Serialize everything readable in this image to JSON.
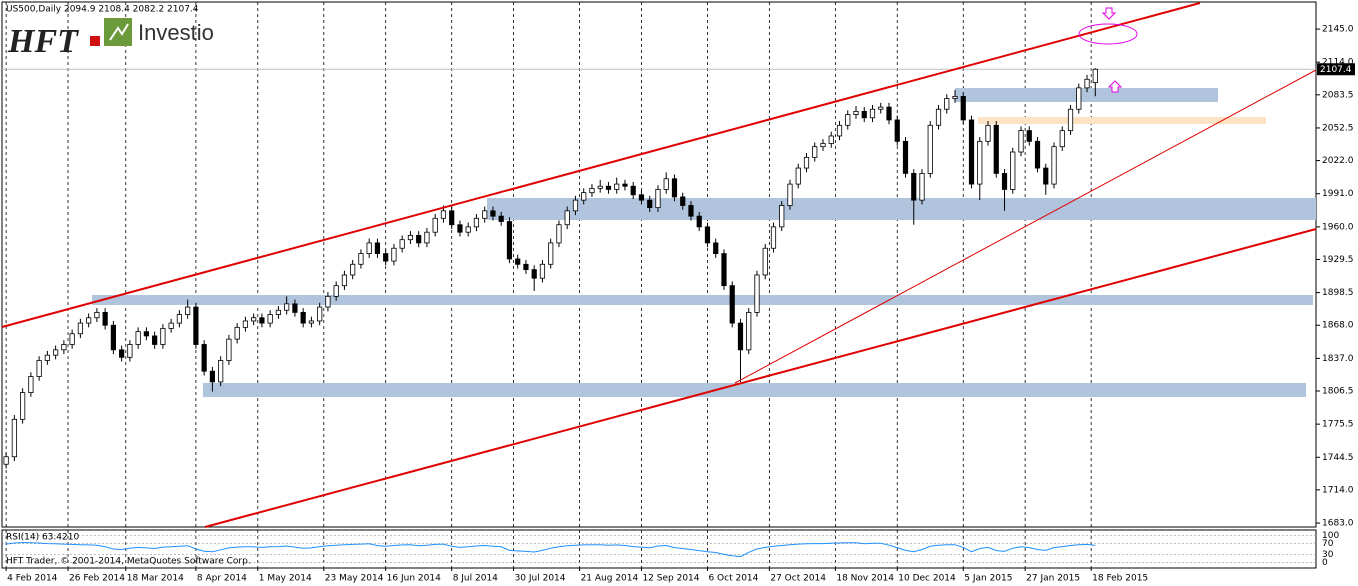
{
  "header": {
    "symbol_line": "US500,Daily  2094.9 2108.4 2082.2 2107.4",
    "logo_left": "HFT",
    "logo_right": "Investio"
  },
  "footer": "HFT Trader, © 2001-2014, MetaQuotes Software Corp.",
  "chart_data": {
    "type": "candlestick",
    "x": [
      0,
      2,
      4,
      6,
      8,
      10,
      12,
      14,
      16,
      18,
      20,
      22,
      24,
      26,
      28,
      30,
      32,
      34,
      36,
      38,
      40,
      42,
      44,
      46,
      48,
      50,
      52,
      54,
      56,
      58,
      60,
      62,
      64,
      66,
      68,
      70,
      72,
      74,
      76,
      78,
      80,
      82,
      84,
      86,
      88,
      90,
      92,
      94,
      96,
      98,
      100,
      102,
      104,
      106,
      108,
      110,
      112,
      114,
      116,
      118,
      120,
      122,
      124,
      126,
      128,
      130,
      132,
      134,
      136,
      138,
      140,
      142,
      144,
      146,
      148,
      150,
      152,
      154,
      156,
      158,
      160,
      162,
      164,
      166,
      168,
      170,
      172,
      174,
      176,
      178,
      180,
      182,
      184,
      186,
      188,
      190,
      192,
      194,
      196,
      198,
      200,
      202,
      204,
      206,
      208,
      210,
      212,
      214,
      216,
      218,
      220,
      222,
      224,
      226,
      228,
      230,
      232,
      234,
      236,
      238,
      240,
      242,
      244,
      246,
      248,
      250,
      252,
      254,
      256,
      258,
      260,
      262,
      264
    ],
    "open": [
      1738,
      1745,
      1780,
      1805,
      1820,
      1835,
      1840,
      1845,
      1850,
      1860,
      1870,
      1875,
      1880,
      1868,
      1845,
      1838,
      1850,
      1862,
      1858,
      1850,
      1865,
      1870,
      1878,
      1885,
      1850,
      1825,
      1815,
      1835,
      1855,
      1866,
      1872,
      1875,
      1870,
      1878,
      1882,
      1888,
      1880,
      1870,
      1872,
      1885,
      1895,
      1905,
      1915,
      1925,
      1935,
      1945,
      1935,
      1928,
      1940,
      1948,
      1952,
      1945,
      1955,
      1968,
      1975,
      1962,
      1955,
      1960,
      1968,
      1975,
      1970,
      1965,
      1930,
      1925,
      1920,
      1912,
      1925,
      1945,
      1962,
      1975,
      1985,
      1992,
      1996,
      1998,
      1995,
      2000,
      1998,
      1990,
      1985,
      1978,
      1995,
      2005,
      1988,
      1980,
      1970,
      1960,
      1945,
      1935,
      1905,
      1870,
      1845,
      1880,
      1915,
      1940,
      1960,
      1980,
      2000,
      2015,
      2025,
      2035,
      2038,
      2045,
      2055,
      2065,
      2068,
      2062,
      2070,
      2072,
      2060,
      2040,
      2010,
      1985,
      2010,
      2055,
      2070,
      2080,
      2082,
      2060,
      2000,
      2040,
      2055,
      2010,
      1995,
      2030,
      2050,
      2040,
      2015,
      2000,
      2035,
      2050,
      2070,
      2090,
      2094.9
    ],
    "high": [
      1749,
      1784,
      1809,
      1824,
      1839,
      1844,
      1849,
      1854,
      1864,
      1874,
      1879,
      1884,
      1884,
      1872,
      1849,
      1854,
      1866,
      1866,
      1862,
      1869,
      1874,
      1882,
      1892,
      1889,
      1854,
      1829,
      1839,
      1859,
      1870,
      1876,
      1879,
      1879,
      1882,
      1886,
      1895,
      1892,
      1884,
      1876,
      1889,
      1899,
      1909,
      1919,
      1929,
      1939,
      1949,
      1949,
      1939,
      1944,
      1952,
      1956,
      1956,
      1959,
      1972,
      1980,
      1979,
      1966,
      1964,
      1972,
      1979,
      1979,
      1974,
      1969,
      1934,
      1929,
      1924,
      1929,
      1949,
      1966,
      1979,
      1989,
      1996,
      2000,
      2004,
      2002,
      2006,
      2004,
      2002,
      1994,
      1989,
      1999,
      2011,
      2009,
      1992,
      1984,
      1974,
      1964,
      1949,
      1939,
      1909,
      1874,
      1884,
      1919,
      1944,
      1964,
      1984,
      2004,
      2019,
      2029,
      2039,
      2042,
      2049,
      2059,
      2069,
      2073,
      2072,
      2074,
      2076,
      2076,
      2064,
      2044,
      2014,
      2014,
      2059,
      2074,
      2084,
      2088,
      2086,
      2064,
      2044,
      2059,
      2059,
      2014,
      2034,
      2054,
      2054,
      2044,
      2019,
      2039,
      2054,
      2074,
      2094,
      2102,
      2108.4
    ],
    "low": [
      1734,
      1741,
      1776,
      1801,
      1816,
      1831,
      1836,
      1841,
      1846,
      1856,
      1866,
      1871,
      1864,
      1841,
      1834,
      1834,
      1846,
      1854,
      1846,
      1846,
      1861,
      1866,
      1874,
      1846,
      1821,
      1806,
      1811,
      1831,
      1851,
      1862,
      1868,
      1866,
      1866,
      1874,
      1878,
      1876,
      1866,
      1866,
      1868,
      1881,
      1891,
      1901,
      1911,
      1921,
      1931,
      1931,
      1924,
      1924,
      1936,
      1944,
      1941,
      1941,
      1951,
      1964,
      1958,
      1951,
      1951,
      1956,
      1964,
      1966,
      1961,
      1926,
      1921,
      1916,
      1900,
      1908,
      1921,
      1941,
      1958,
      1971,
      1981,
      1988,
      1992,
      1991,
      1991,
      1994,
      1986,
      1981,
      1974,
      1974,
      1991,
      1984,
      1976,
      1966,
      1956,
      1941,
      1931,
      1901,
      1866,
      1815,
      1841,
      1876,
      1911,
      1936,
      1956,
      1976,
      1996,
      2011,
      2021,
      2031,
      2034,
      2041,
      2051,
      2061,
      2058,
      2058,
      2066,
      2056,
      2036,
      2006,
      1962,
      1981,
      2006,
      2051,
      2066,
      2076,
      2056,
      1996,
      1985,
      2036,
      2006,
      1975,
      1991,
      2026,
      2036,
      2011,
      1990,
      1996,
      2031,
      2046,
      2066,
      2086,
      2082.2
    ],
    "close": [
      1745,
      1780,
      1805,
      1820,
      1835,
      1840,
      1845,
      1850,
      1860,
      1870,
      1875,
      1880,
      1868,
      1845,
      1838,
      1850,
      1862,
      1858,
      1850,
      1865,
      1870,
      1878,
      1885,
      1850,
      1825,
      1815,
      1835,
      1855,
      1866,
      1872,
      1875,
      1870,
      1878,
      1882,
      1888,
      1880,
      1870,
      1872,
      1885,
      1895,
      1905,
      1915,
      1925,
      1935,
      1945,
      1935,
      1928,
      1940,
      1948,
      1952,
      1945,
      1955,
      1968,
      1975,
      1962,
      1955,
      1960,
      1968,
      1975,
      1970,
      1965,
      1930,
      1925,
      1920,
      1912,
      1925,
      1945,
      1962,
      1975,
      1985,
      1992,
      1996,
      1998,
      1995,
      2000,
      1998,
      1990,
      1985,
      1978,
      1995,
      2005,
      1988,
      1980,
      1970,
      1960,
      1945,
      1935,
      1905,
      1870,
      1845,
      1880,
      1915,
      1940,
      1960,
      1980,
      2000,
      2015,
      2025,
      2035,
      2038,
      2045,
      2055,
      2065,
      2068,
      2062,
      2070,
      2072,
      2060,
      2040,
      2010,
      1985,
      2010,
      2055,
      2070,
      2080,
      2082,
      2060,
      2000,
      2040,
      2055,
      2010,
      1995,
      2030,
      2050,
      2040,
      2015,
      2000,
      2035,
      2050,
      2070,
      2090,
      2098,
      2107.4
    ],
    "up_color": "#ffffff",
    "down_color": "#000000",
    "wick_color": "#000000",
    "xlim": [
      -1,
      317.5
    ],
    "xticks": [
      {
        "value": 0,
        "label": "4 Feb 2014"
      },
      {
        "value": 15,
        "label": "26 Feb 2014"
      },
      {
        "value": 29,
        "label": "18 Mar 2014"
      },
      {
        "value": 46,
        "label": "8 Apr 2014"
      },
      {
        "value": 61,
        "label": "1 May 2014"
      },
      {
        "value": 77,
        "label": "23 May 2014"
      },
      {
        "value": 92,
        "label": "16 Jun 2014"
      },
      {
        "value": 108,
        "label": "8 Jul 2014"
      },
      {
        "value": 123,
        "label": "30 Jul 2014"
      },
      {
        "value": 139,
        "label": "21 Aug 2014"
      },
      {
        "value": 154,
        "label": "12 Sep 2014"
      },
      {
        "value": 170,
        "label": "6 Oct 2014"
      },
      {
        "value": 185,
        "label": "27 Oct 2014"
      },
      {
        "value": 201,
        "label": "18 Nov 2014"
      },
      {
        "value": 216,
        "label": "10 Dec 2014"
      },
      {
        "value": 232,
        "label": "5 Jan 2015"
      },
      {
        "value": 247,
        "label": "27 Jan 2015"
      },
      {
        "value": 263,
        "label": "18 Feb 2015"
      }
    ],
    "ylim": [
      1679.3,
      2170.3
    ],
    "yticks": [
      {
        "value": 1683,
        "label": "1683.0"
      },
      {
        "value": 1714,
        "label": "1714.0"
      },
      {
        "value": 1744.5,
        "label": "1744.5"
      },
      {
        "value": 1775.5,
        "label": "1775.5"
      },
      {
        "value": 1806.5,
        "label": "1806.5"
      },
      {
        "value": 1837,
        "label": "1837.0"
      },
      {
        "value": 1868,
        "label": "1868.0"
      },
      {
        "value": 1898.5,
        "label": "1898.5"
      },
      {
        "value": 1929.5,
        "label": "1929.5"
      },
      {
        "value": 1960,
        "label": "1960.0"
      },
      {
        "value": 1991,
        "label": "1991.0"
      },
      {
        "value": 2022,
        "label": "2022.0"
      },
      {
        "value": 2052.5,
        "label": "2052.5"
      },
      {
        "value": 2083.5,
        "label": "2083.5"
      },
      {
        "value": 2114,
        "label": "2114.0"
      },
      {
        "value": 2145,
        "label": "2145.0"
      }
    ],
    "grid": true,
    "indicator": {
      "name": "RSI(14) 63.4210",
      "color": "#1e90ff",
      "ylim": [
        -20,
        120
      ],
      "yticks": [
        0,
        30,
        70,
        100
      ],
      "values": [
        68,
        72,
        74,
        73,
        72,
        70,
        69,
        68,
        67,
        66,
        65,
        64,
        58,
        50,
        48,
        53,
        56,
        54,
        52,
        57,
        58,
        60,
        62,
        50,
        42,
        40,
        47,
        54,
        57,
        58,
        58,
        56,
        58,
        59,
        61,
        57,
        53,
        54,
        59,
        62,
        64,
        66,
        67,
        68,
        69,
        63,
        60,
        63,
        65,
        66,
        62,
        64,
        67,
        68,
        60,
        56,
        58,
        61,
        63,
        60,
        58,
        45,
        43,
        41,
        39,
        45,
        53,
        58,
        62,
        64,
        65,
        66,
        66,
        64,
        65,
        63,
        59,
        57,
        54,
        61,
        63,
        55,
        52,
        48,
        44,
        40,
        37,
        30,
        25,
        22,
        38,
        50,
        56,
        60,
        63,
        66,
        68,
        69,
        70,
        70,
        71,
        72,
        73,
        73,
        69,
        71,
        71,
        64,
        55,
        45,
        40,
        48,
        60,
        64,
        66,
        66,
        56,
        40,
        52,
        56,
        44,
        41,
        53,
        58,
        55,
        48,
        45,
        55,
        59,
        63,
        66,
        67,
        63.421
      ]
    }
  }
}
